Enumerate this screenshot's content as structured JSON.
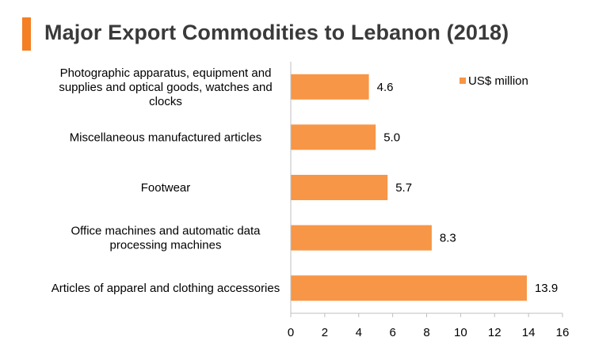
{
  "title": "Major Export Commodities to Lebanon (2018)",
  "colors": {
    "accent": "#f47f24",
    "bar": "#f79646",
    "axis": "#bfbfbf",
    "title_text": "#3a3a3a"
  },
  "chart_data": {
    "type": "bar",
    "orientation": "horizontal",
    "title": "Major Export Commodities to Lebanon (2018)",
    "categories": [
      [
        "Photographic apparatus, equipment and",
        "supplies and optical goods, watches and",
        "clocks"
      ],
      [
        "Miscellaneous manufactured articles"
      ],
      [
        "Footwear"
      ],
      [
        "Office machines and automatic data",
        "processing machines"
      ],
      [
        "Articles of apparel and clothing accessories"
      ]
    ],
    "series": [
      {
        "name": "US$ million",
        "values": [
          4.6,
          5.0,
          5.7,
          8.3,
          13.9
        ],
        "value_labels": [
          "4.6",
          "5.0",
          "5.7",
          "8.3",
          "13.9"
        ]
      }
    ],
    "xlim": [
      0,
      16
    ],
    "xticks": [
      "0",
      "2",
      "4",
      "6",
      "8",
      "10",
      "12",
      "14",
      "16"
    ],
    "xlabel": "",
    "ylabel": "",
    "grid": false,
    "legend_position": "top-right"
  }
}
